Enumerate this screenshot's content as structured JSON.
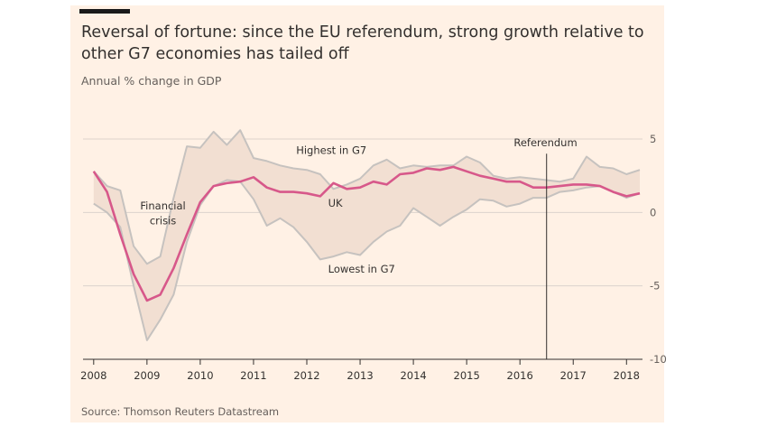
{
  "header": {
    "title": "Reversal of fortune: since the EU referendum, strong growth relative to other G7 economies has tailed off",
    "subtitle": "Annual % change in GDP"
  },
  "footer": {
    "source": "Source: Thomson Reuters Datastream"
  },
  "colors": {
    "background": "#fff1e5",
    "uk_line": "#d7588a",
    "range_fill": "#f2dfd2",
    "range_line": "#c6c2bf",
    "grid": "#dcd3cc",
    "text": "#33302e"
  },
  "chart_data": {
    "type": "line",
    "title": "Reversal of fortune: since the EU referendum, strong growth relative to other G7 economies has tailed off",
    "ylabel": "Annual % change in GDP",
    "xlim": [
      2007.8,
      2018.3
    ],
    "ylim": [
      -10,
      5
    ],
    "yticks": [
      5,
      0,
      -5,
      -10
    ],
    "ytick_labels": [
      "5",
      "0",
      "-5",
      "-10"
    ],
    "xticks": [
      2008,
      2009,
      2010,
      2011,
      2012,
      2013,
      2014,
      2015,
      2016,
      2017,
      2018
    ],
    "xtick_labels": [
      "2008",
      "2009",
      "2010",
      "2011",
      "2012",
      "2013",
      "2014",
      "2015",
      "2016",
      "2017",
      "2018"
    ],
    "grid": true,
    "x": [
      2008.0,
      2008.25,
      2008.5,
      2008.75,
      2009.0,
      2009.25,
      2009.5,
      2009.75,
      2010.0,
      2010.25,
      2010.5,
      2010.75,
      2011.0,
      2011.25,
      2011.5,
      2011.75,
      2012.0,
      2012.25,
      2012.5,
      2012.75,
      2013.0,
      2013.25,
      2013.5,
      2013.75,
      2014.0,
      2014.25,
      2014.5,
      2014.75,
      2015.0,
      2015.25,
      2015.5,
      2015.75,
      2016.0,
      2016.25,
      2016.5,
      2016.75,
      2017.0,
      2017.25,
      2017.5,
      2017.75,
      2018.0,
      2018.25
    ],
    "series": [
      {
        "name": "Highest in G7",
        "values": [
          2.8,
          1.8,
          1.5,
          -2.3,
          -3.5,
          -3.0,
          1.0,
          4.5,
          4.4,
          5.5,
          4.6,
          5.6,
          3.7,
          3.5,
          3.2,
          3.0,
          2.9,
          2.6,
          1.6,
          1.9,
          2.3,
          3.2,
          3.6,
          3.0,
          3.2,
          3.1,
          3.2,
          3.2,
          3.8,
          3.4,
          2.5,
          2.3,
          2.4,
          2.3,
          2.2,
          2.1,
          2.3,
          3.8,
          3.1,
          3.0,
          2.6,
          2.9
        ]
      },
      {
        "name": "UK",
        "values": [
          2.8,
          1.4,
          -1.5,
          -4.2,
          -6.0,
          -5.6,
          -3.8,
          -1.5,
          0.7,
          1.8,
          2.0,
          2.1,
          2.4,
          1.7,
          1.4,
          1.4,
          1.3,
          1.1,
          2.0,
          1.6,
          1.7,
          2.1,
          1.9,
          2.6,
          2.7,
          3.0,
          2.9,
          3.1,
          2.8,
          2.5,
          2.3,
          2.1,
          2.1,
          1.7,
          1.7,
          1.8,
          1.9,
          1.9,
          1.8,
          1.4,
          1.1,
          1.3
        ]
      },
      {
        "name": "Lowest in G7",
        "values": [
          0.6,
          0.0,
          -1.0,
          -5.0,
          -8.7,
          -7.3,
          -5.6,
          -2.0,
          0.5,
          1.8,
          2.2,
          2.1,
          0.9,
          -0.9,
          -0.4,
          -1.0,
          -2.0,
          -3.2,
          -3.0,
          -2.7,
          -2.9,
          -2.0,
          -1.3,
          -0.9,
          0.3,
          -0.3,
          -0.9,
          -0.3,
          0.2,
          0.9,
          0.8,
          0.4,
          0.6,
          1.0,
          1.0,
          1.4,
          1.5,
          1.7,
          1.8,
          1.4,
          1.0,
          1.3
        ]
      }
    ],
    "annotations": [
      {
        "text": "Highest in G7",
        "x": 2011.8,
        "y": 4.0
      },
      {
        "text": "UK",
        "x": 2012.4,
        "y": 0.4
      },
      {
        "text": "Financial",
        "x": 2009.3,
        "y": 0.2
      },
      {
        "text": "crisis",
        "x": 2009.3,
        "y": -0.8
      },
      {
        "text": "Lowest in G7",
        "x": 2012.4,
        "y": -4.1
      },
      {
        "text": "Referendum",
        "x": 2016.48,
        "y": 4.5
      }
    ],
    "reference_line_x": 2016.5
  }
}
